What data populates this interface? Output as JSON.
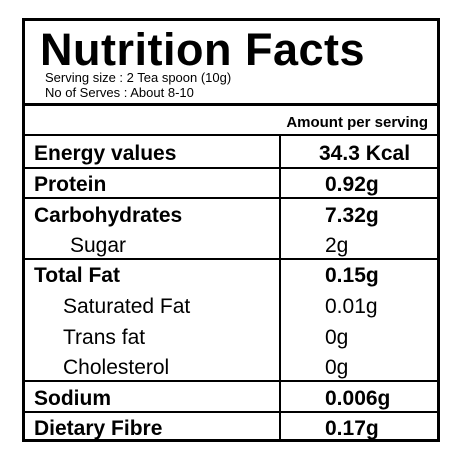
{
  "header": {
    "title": "Nutrition Facts",
    "serving_size": "Serving size : 2 Tea spoon (10g)",
    "servings": "No of Serves : About 8-10"
  },
  "table": {
    "column_header": "Amount per serving",
    "rows": [
      [
        "Energy values",
        "34.3 Kcal"
      ],
      [
        "Protein",
        "0.92g"
      ],
      [
        "Carbohydrates",
        "7.32g"
      ],
      [
        "Sugar",
        "2g"
      ],
      [
        "Total Fat",
        "0.15g"
      ],
      [
        "Saturated Fat",
        "0.01g"
      ],
      [
        "Trans fat",
        "0g"
      ],
      [
        "Cholesterol",
        "0g"
      ],
      [
        "Sodium",
        "0.006g"
      ],
      [
        "Dietary Fibre",
        "0.17g"
      ]
    ]
  }
}
